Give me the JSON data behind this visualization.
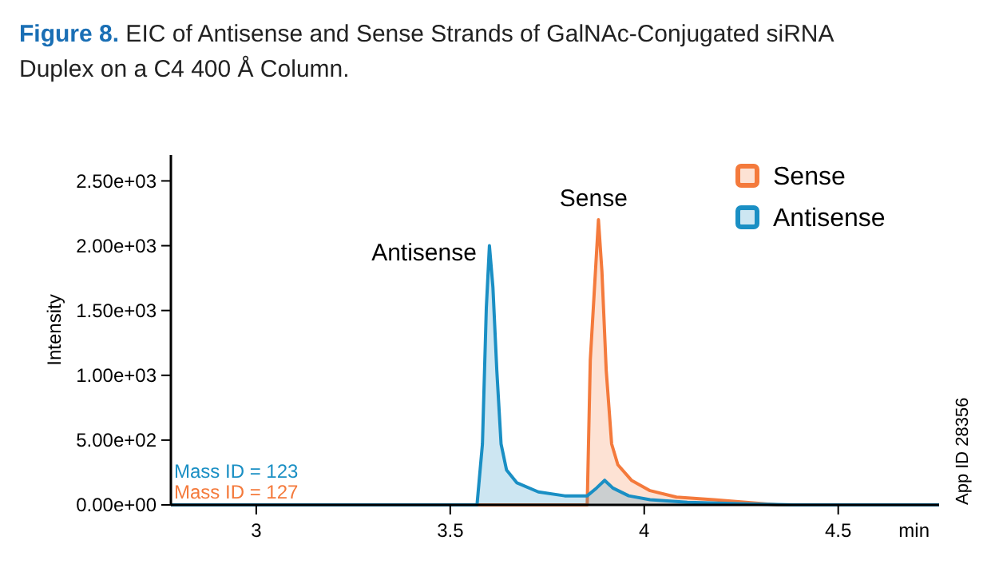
{
  "chart_data": {
    "type": "area",
    "title": "Figure 8. EIC of Antisense and Sense Strands of GalNAc-Conjugated siRNA Duplex on a C4 400 Å Column.",
    "ylabel": "Intensity",
    "xlabel": "min",
    "xlim": [
      2.78,
      4.76
    ],
    "xticks": [
      3,
      3.5,
      4,
      4.5
    ],
    "ylim": [
      0,
      2700
    ],
    "yticks": [
      {
        "value": 0,
        "label": "0.00e+00"
      },
      {
        "value": 500,
        "label": "5.00e+02"
      },
      {
        "value": 1000,
        "label": "1.00e+03"
      },
      {
        "value": 1500,
        "label": "1.50e+03"
      },
      {
        "value": 2000,
        "label": "2.00e+03"
      },
      {
        "value": 2500,
        "label": "2.50e+03"
      }
    ],
    "grid": false,
    "legend": "top right",
    "annotations": [
      "Mass ID = 123",
      "Mass ID = 127",
      "App  ID 28356",
      {
        "text": "Antisense",
        "x": 3.601,
        "y": 2000
      },
      {
        "text": "Sense",
        "x": 3.882,
        "y": 2200
      }
    ],
    "series": [
      {
        "name": "Sense",
        "color": "#f47a3c",
        "x": [
          2.78,
          3.853,
          3.861,
          3.882,
          3.891,
          3.902,
          3.916,
          3.932,
          3.967,
          4.015,
          4.083,
          4.179,
          4.262,
          4.344,
          4.76
        ],
        "values": [
          0,
          0,
          1120,
          2200,
          1800,
          1040,
          470,
          310,
          190,
          110,
          60,
          40,
          20,
          0,
          0
        ]
      },
      {
        "name": "Antisense",
        "color": "#1a8fc4",
        "x": [
          2.78,
          3.569,
          3.583,
          3.593,
          3.601,
          3.61,
          3.62,
          3.631,
          3.645,
          3.672,
          3.727,
          3.795,
          3.853,
          3.877,
          3.898,
          3.919,
          3.96,
          4.015,
          4.111,
          4.248,
          4.385,
          4.76
        ],
        "values": [
          0,
          0,
          470,
          1520,
          2000,
          1680,
          1040,
          470,
          270,
          170,
          100,
          70,
          70,
          130,
          190,
          130,
          70,
          40,
          20,
          10,
          0,
          0
        ]
      }
    ]
  }
}
